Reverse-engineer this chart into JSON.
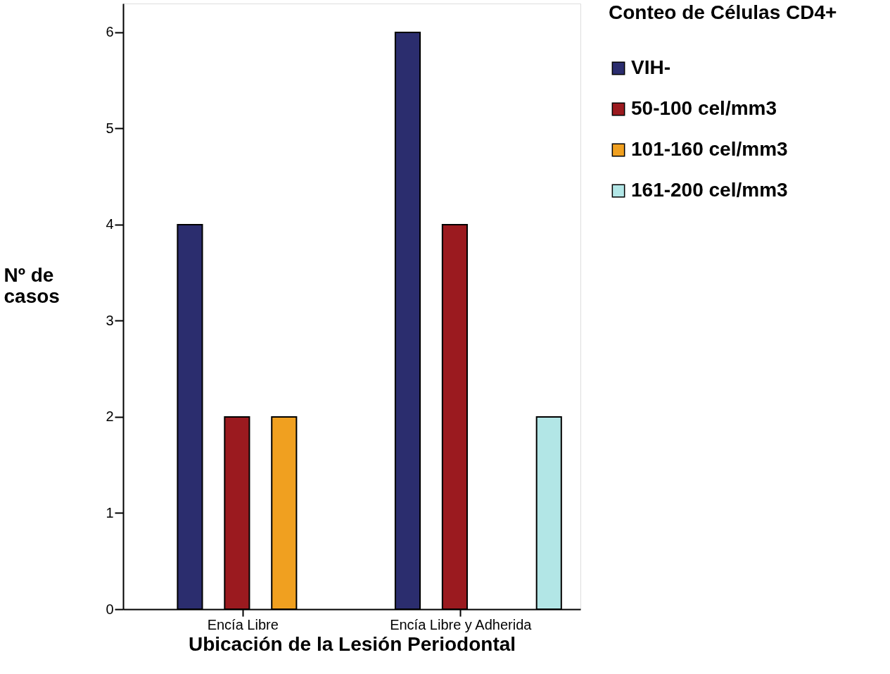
{
  "chart_data": {
    "type": "bar",
    "xlabel": "Ubicación de la Lesión Periodontal",
    "ylabel": "Nº de casos",
    "legend_title": "Conteo de Células CD4+",
    "categories": [
      "Encía Libre",
      "Encía Libre y Adherida"
    ],
    "series": [
      {
        "name": "VIH-",
        "color": "#2b2d6e",
        "values": [
          4,
          6
        ]
      },
      {
        "name": "50-100 cel/mm3",
        "color": "#9b1a1f",
        "values": [
          2,
          4
        ]
      },
      {
        "name": "101-160 cel/mm3",
        "color": "#f0a020",
        "values": [
          2,
          null
        ]
      },
      {
        "name": "161-200 cel/mm3",
        "color": "#b2e6e6",
        "values": [
          null,
          2
        ]
      }
    ],
    "ylim": [
      0,
      6.3
    ],
    "yticks": [
      0,
      1,
      2,
      3,
      4,
      5,
      6
    ],
    "grid": false,
    "legend": "right"
  }
}
